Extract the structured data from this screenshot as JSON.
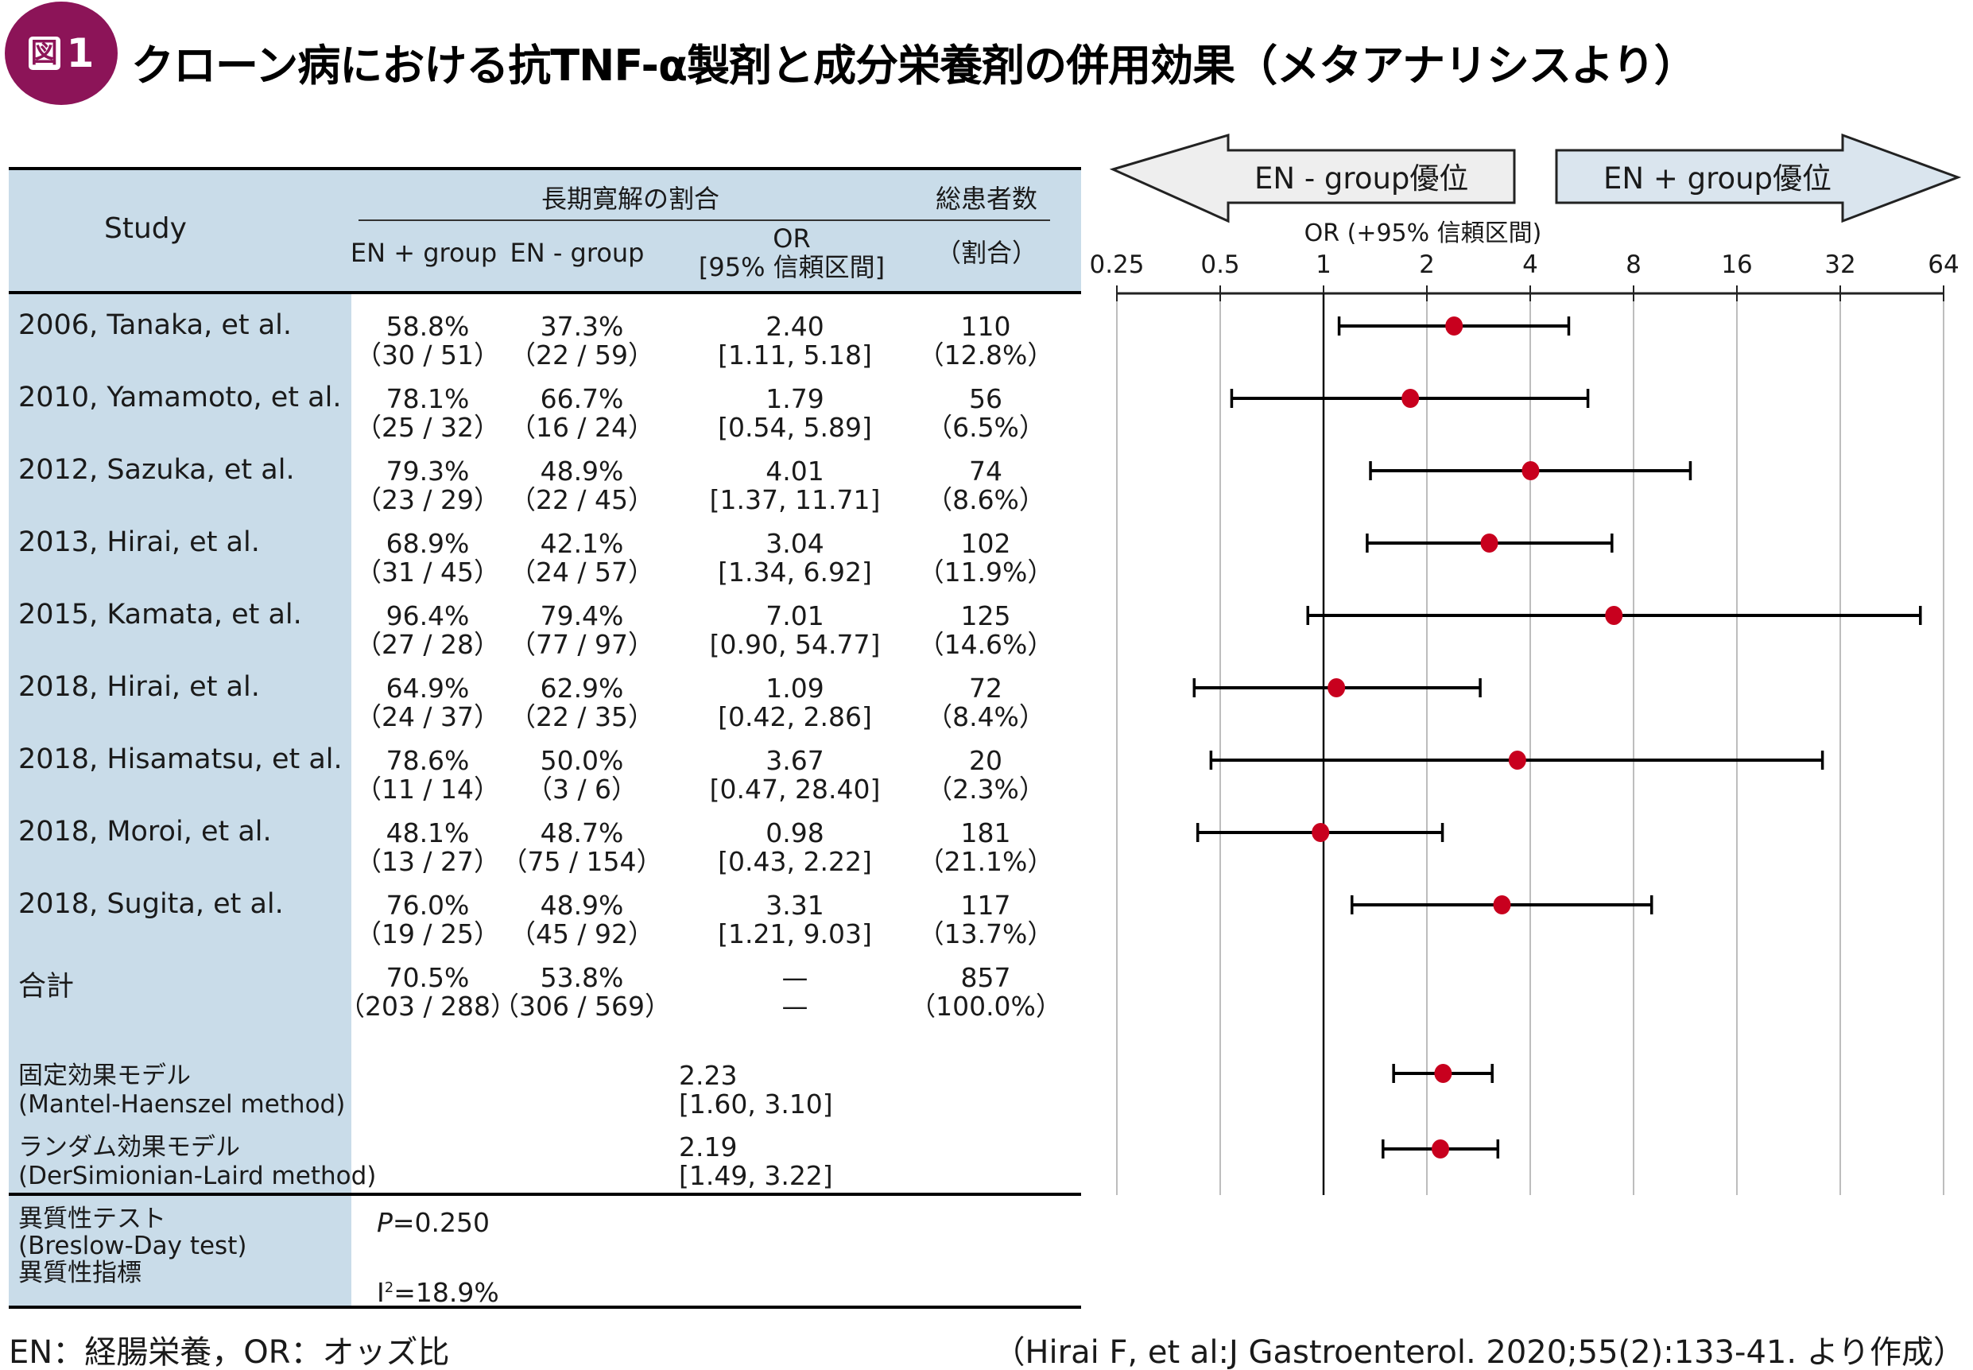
{
  "figure": {
    "badge_kanji": "図",
    "badge_number": "1",
    "title": "クローン病における抗TNF-α製剤と成分栄養剤の併用効果（メタアナリシスより）",
    "brand_color": "#8c1458",
    "header_bg_color": "#c9dce9",
    "marker_color": "#c8001e"
  },
  "table": {
    "header": {
      "study": "Study",
      "group_heading": "長期寛解の割合",
      "total_heading": "総患者数",
      "en_plus": "EN + group",
      "en_minus": "EN - group",
      "or_line1": "OR",
      "or_line2": "[95% 信頼区間]",
      "ratio": "（割合）"
    },
    "rows": [
      {
        "study": "2006, Tanaka, et al.",
        "en_plus_pct": "58.8%",
        "en_plus_n": "（30 / 51）",
        "en_minus_pct": "37.3%",
        "en_minus_n": "（22 / 59）",
        "or": "2.40",
        "ci": "[1.11,  5.18]",
        "total": "110",
        "total_pct": "（12.8%）"
      },
      {
        "study": "2010, Yamamoto, et al.",
        "en_plus_pct": "78.1%",
        "en_plus_n": "（25 / 32）",
        "en_minus_pct": "66.7%",
        "en_minus_n": "（16 / 24）",
        "or": "1.79",
        "ci": "[0.54,  5.89]",
        "total": "56",
        "total_pct": "（6.5%）"
      },
      {
        "study": "2012, Sazuka, et al.",
        "en_plus_pct": "79.3%",
        "en_plus_n": "（23 / 29）",
        "en_minus_pct": "48.9%",
        "en_minus_n": "（22 / 45）",
        "or": "4.01",
        "ci": "[1.37,  11.71]",
        "total": "74",
        "total_pct": "（8.6%）"
      },
      {
        "study": "2013, Hirai, et al.",
        "en_plus_pct": "68.9%",
        "en_plus_n": "（31 / 45）",
        "en_minus_pct": "42.1%",
        "en_minus_n": "（24 / 57）",
        "or": "3.04",
        "ci": "[1.34,  6.92]",
        "total": "102",
        "total_pct": "（11.9%）"
      },
      {
        "study": "2015, Kamata, et al.",
        "en_plus_pct": "96.4%",
        "en_plus_n": "（27 / 28）",
        "en_minus_pct": "79.4%",
        "en_minus_n": "（77 / 97）",
        "or": "7.01",
        "ci": "[0.90,  54.77]",
        "total": "125",
        "total_pct": "（14.6%）"
      },
      {
        "study": "2018, Hirai, et al.",
        "en_plus_pct": "64.9%",
        "en_plus_n": "（24 / 37）",
        "en_minus_pct": "62.9%",
        "en_minus_n": "（22 / 35）",
        "or": "1.09",
        "ci": "[0.42,  2.86]",
        "total": "72",
        "total_pct": "（8.4%）"
      },
      {
        "study": "2018, Hisamatsu, et al.",
        "en_plus_pct": "78.6%",
        "en_plus_n": "（11 / 14）",
        "en_minus_pct": "50.0%",
        "en_minus_n": "（3 / 6）",
        "or": "3.67",
        "ci": "[0.47,  28.40]",
        "total": "20",
        "total_pct": "（2.3%）"
      },
      {
        "study": "2018, Moroi, et al.",
        "en_plus_pct": "48.1%",
        "en_plus_n": "（13 / 27）",
        "en_minus_pct": "48.7%",
        "en_minus_n": "（75 / 154）",
        "or": "0.98",
        "ci": "[0.43,  2.22]",
        "total": "181",
        "total_pct": "（21.1%）"
      },
      {
        "study": "2018, Sugita, et al.",
        "en_plus_pct": "76.0%",
        "en_plus_n": "（19 / 25）",
        "en_minus_pct": "48.9%",
        "en_minus_n": "（45 / 92）",
        "or": "3.31",
        "ci": "[1.21,  9.03]",
        "total": "117",
        "total_pct": "（13.7%）"
      }
    ],
    "total_row": {
      "label": "合計",
      "en_plus_pct": "70.5%",
      "en_plus_n": "（203 / 288）",
      "en_minus_pct": "53.8%",
      "en_minus_n": "（306 / 569）",
      "or": "—",
      "ci": "—",
      "total": "857",
      "total_pct": "（100.0%）"
    },
    "models": [
      {
        "label": "固定効果モデル",
        "method": "(Mantel-Haenszel method)",
        "or": "2.23",
        "ci": "[1.60,  3.10]"
      },
      {
        "label": "ランダム効果モデル",
        "method": "(DerSimionian-Laird method)",
        "or": "2.19",
        "ci": "[1.49,  3.22]"
      }
    ],
    "heterogeneity": {
      "test_label": "異質性テスト",
      "test_method": "(Breslow-Day test)",
      "index_label": "異質性指標",
      "p_symbol": "P",
      "p_value": "=0.250",
      "i2_symbol": "I",
      "i2_sup": "2",
      "i2_value": "=18.9%"
    }
  },
  "footer": {
    "abbreviations": "EN：経腸栄養，OR：オッズ比",
    "source": "（Hirai F, et al:J Gastroenterol. 2020;55(2):133-41. より作成）"
  },
  "chart_data": {
    "type": "forest",
    "title": "",
    "xlabel": "OR (+95% 信頼区間)",
    "xscale": "log2",
    "xlim": [
      0.25,
      64
    ],
    "xticks": [
      0.25,
      0.5,
      1,
      2,
      4,
      8,
      16,
      32,
      64
    ],
    "xtick_labels": [
      "0.25",
      "0.5",
      "1",
      "2",
      "4",
      "8",
      "16",
      "32",
      "64"
    ],
    "reference_line": 1,
    "grid": true,
    "direction_labels": {
      "left": "EN - group優位",
      "right": "EN + group優位"
    },
    "studies": [
      {
        "name": "2006, Tanaka, et al.",
        "or": 2.4,
        "lower": 1.11,
        "upper": 5.18
      },
      {
        "name": "2010, Yamamoto, et al.",
        "or": 1.79,
        "lower": 0.54,
        "upper": 5.89
      },
      {
        "name": "2012, Sazuka, et al.",
        "or": 4.01,
        "lower": 1.37,
        "upper": 11.71
      },
      {
        "name": "2013, Hirai, et al.",
        "or": 3.04,
        "lower": 1.34,
        "upper": 6.92
      },
      {
        "name": "2015, Kamata, et al.",
        "or": 7.01,
        "lower": 0.9,
        "upper": 54.77
      },
      {
        "name": "2018, Hirai, et al.",
        "or": 1.09,
        "lower": 0.42,
        "upper": 2.86
      },
      {
        "name": "2018, Hisamatsu, et al.",
        "or": 3.67,
        "lower": 0.47,
        "upper": 28.4
      },
      {
        "name": "2018, Moroi, et al.",
        "or": 0.98,
        "lower": 0.43,
        "upper": 2.22
      },
      {
        "name": "2018, Sugita, et al.",
        "or": 3.31,
        "lower": 1.21,
        "upper": 9.03
      }
    ],
    "pooled": [
      {
        "name": "固定効果モデル",
        "or": 2.23,
        "lower": 1.6,
        "upper": 3.1
      },
      {
        "name": "ランダム効果モデル",
        "or": 2.19,
        "lower": 1.49,
        "upper": 3.22
      }
    ]
  }
}
